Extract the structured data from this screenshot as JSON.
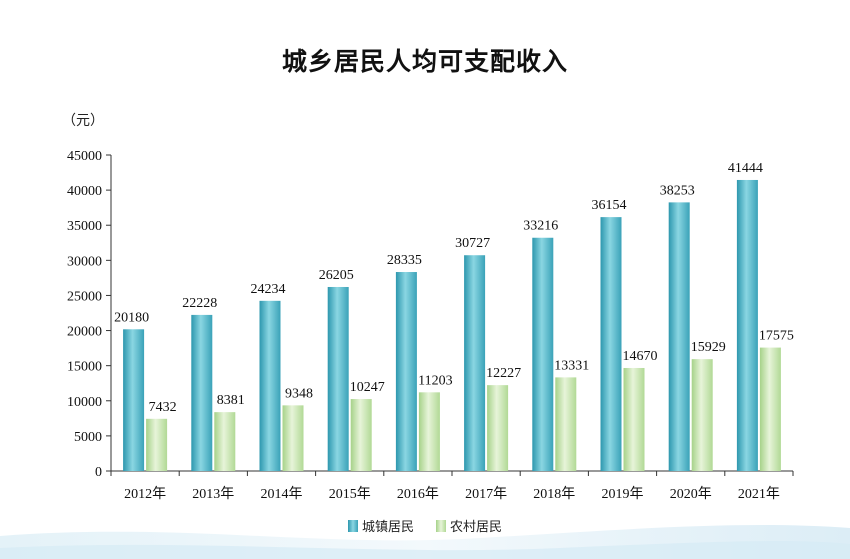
{
  "chart_data": {
    "type": "bar",
    "title": "城乡居民人均可支配收入",
    "unit": "（元）",
    "categories": [
      "2012年",
      "2013年",
      "2014年",
      "2015年",
      "2016年",
      "2017年",
      "2018年",
      "2019年",
      "2020年",
      "2021年"
    ],
    "series": [
      {
        "name": "城镇居民",
        "color": "#49b2c6",
        "values": [
          20180,
          22228,
          24234,
          26205,
          28335,
          30727,
          33216,
          36154,
          38253,
          41444
        ]
      },
      {
        "name": "农村居民",
        "color": "#c6e4ad",
        "values": [
          7432,
          8381,
          9348,
          10247,
          11203,
          12227,
          13331,
          14670,
          15929,
          17575
        ]
      }
    ],
    "ylim": [
      0,
      45000
    ],
    "yticks": [
      0,
      5000,
      10000,
      15000,
      20000,
      25000,
      30000,
      35000,
      40000,
      45000
    ],
    "legend_position": "bottom-center",
    "grid": false,
    "data_labels": true
  }
}
